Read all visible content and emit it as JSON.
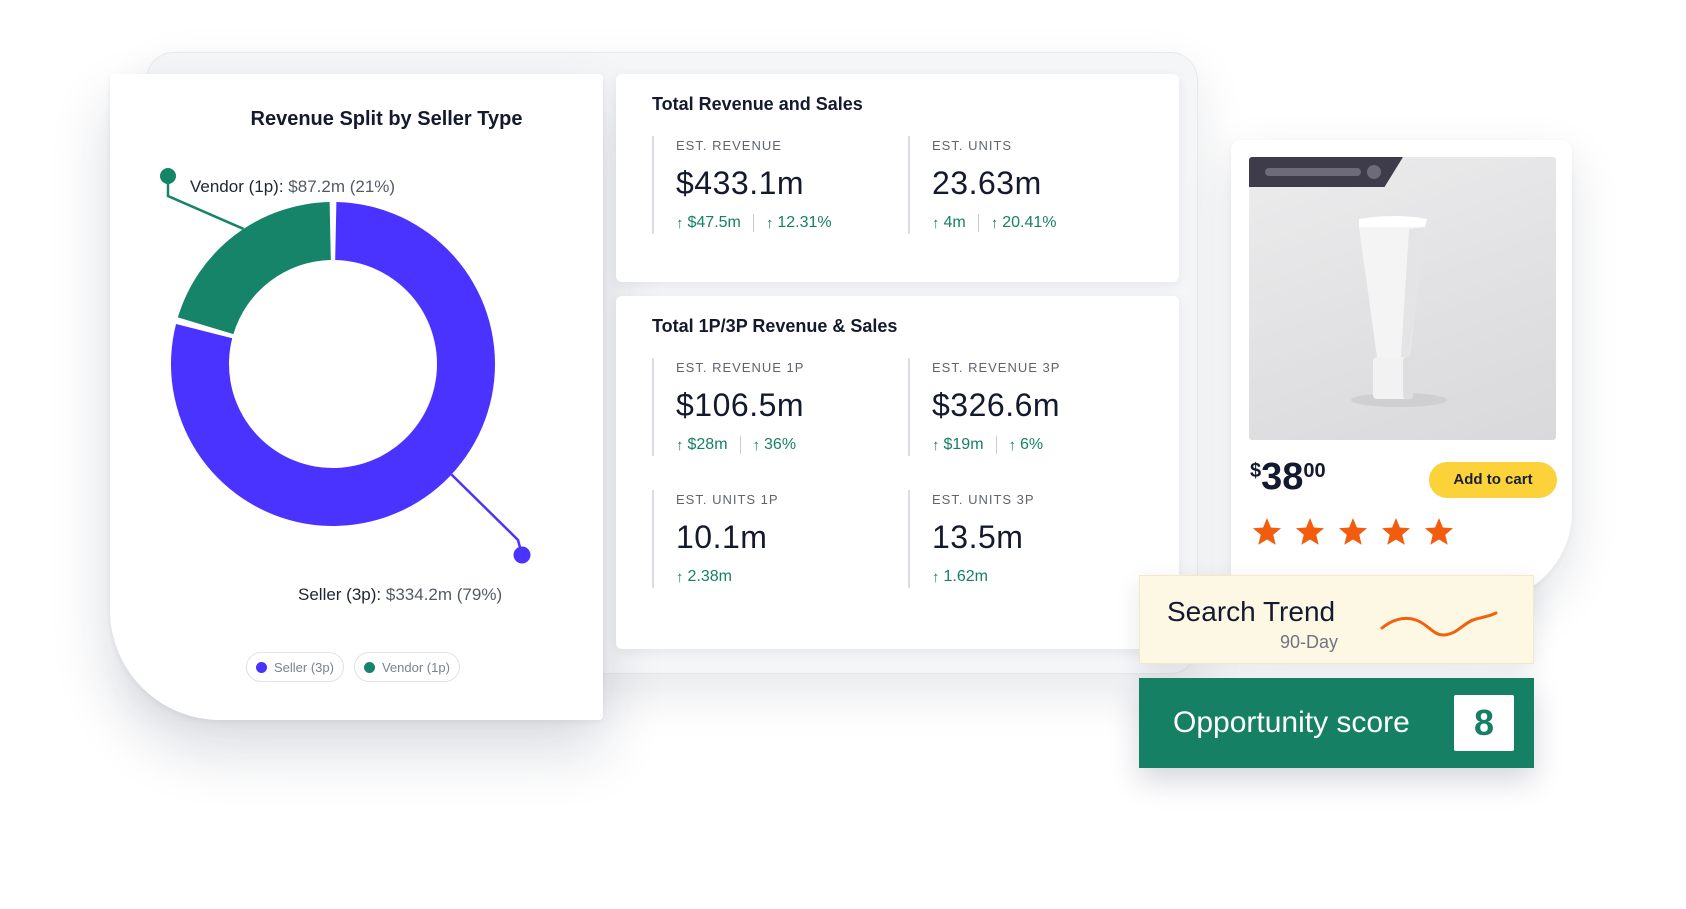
{
  "revenue_split": {
    "title": "Revenue Split by Seller Type",
    "vendor": {
      "name": "Vendor (1p):",
      "value": "$87.2m (21%)"
    },
    "seller": {
      "name": "Seller (3p):",
      "value": "$334.2m (79%)"
    },
    "legend": [
      "Seller (3p)",
      "Vendor (1p)"
    ],
    "colors": {
      "seller": "#4a33ff",
      "vendor": "#168469"
    }
  },
  "chart_data": {
    "type": "pie",
    "title": "Revenue Split by Seller Type",
    "categories": [
      "Vendor (1p)",
      "Seller (3p)"
    ],
    "values": [
      87.2,
      334.2
    ],
    "percent": [
      21,
      79
    ],
    "legend_position": "bottom"
  },
  "total_revenue": {
    "title": "Total Revenue and Sales",
    "metrics": [
      {
        "label": "EST. REVENUE",
        "value": "$433.1m",
        "deltas": [
          "$47.5m",
          "12.31%"
        ]
      },
      {
        "label": "EST. UNITS",
        "value": "23.63m",
        "deltas": [
          "4m",
          "20.41%"
        ]
      }
    ]
  },
  "split_revenue": {
    "title": "Total 1P/3P Revenue & Sales",
    "metrics": [
      {
        "label": "EST. REVENUE 1P",
        "value": "$106.5m",
        "deltas": [
          "$28m",
          "36%"
        ]
      },
      {
        "label": "EST. REVENUE 3P",
        "value": "$326.6m",
        "deltas": [
          "$19m",
          "6%"
        ]
      },
      {
        "label": "EST. UNITS 1P",
        "value": "10.1m",
        "deltas": [
          "2.38m"
        ]
      },
      {
        "label": "EST. UNITS 3P",
        "value": "13.5m",
        "deltas": [
          "1.62m"
        ]
      }
    ]
  },
  "arrow_glyph": "↑",
  "product": {
    "price_currency": "$",
    "price_whole": "38",
    "price_cents": "00",
    "cart_label": "Add to cart",
    "rating": 5,
    "rating_max": 5,
    "star_color": "#f25c0c"
  },
  "search_trend": {
    "title": "Search Trend",
    "subtitle": "90-Day",
    "line_color": "#f0620d"
  },
  "opportunity": {
    "label": "Opportunity score",
    "score": "8"
  }
}
